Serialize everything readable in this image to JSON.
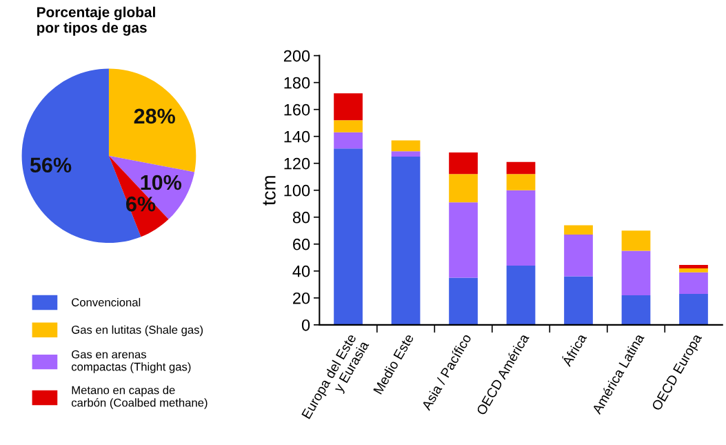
{
  "chart_data": [
    {
      "type": "pie",
      "title": "Porcentaje global\npor tipos de gas",
      "categories": [
        "Convencional",
        "Gas en lutitas (Shale gas)",
        "Gas en arenas\ncompactas (Thight gas)",
        "Metano en capas de\ncarbón (Coalbed methane)"
      ],
      "values": [
        56,
        28,
        10,
        6
      ],
      "colors": [
        "#3f5fe6",
        "#ffbf00",
        "#a566ff",
        "#e00000"
      ],
      "value_labels": [
        "56%",
        "28%",
        "10%",
        "6%"
      ],
      "legend": "bottom"
    },
    {
      "type": "bar",
      "stacked": true,
      "ylabel": "tcm",
      "categories": [
        "Europa del Este\ny Eurasia",
        "Medio Este",
        "Asia / Pacífico",
        "OECD América",
        "África",
        "América Latina",
        "OECD Europa"
      ],
      "ylim": [
        0,
        200
      ],
      "yticks": [
        0,
        20,
        40,
        60,
        80,
        100,
        120,
        140,
        160,
        180,
        200
      ],
      "series": [
        {
          "color": "#3f5fe6",
          "values": [
            131,
            125,
            35,
            44,
            36,
            22,
            23
          ]
        },
        {
          "color": "#a566ff",
          "values": [
            12,
            4,
            56,
            56,
            31,
            33,
            16
          ]
        },
        {
          "color": "#ffbf00",
          "values": [
            9,
            8,
            21,
            12,
            7,
            15,
            3
          ]
        },
        {
          "color": "#e00000",
          "values": [
            20,
            null,
            16,
            9,
            null,
            null,
            2.5
          ]
        }
      ]
    }
  ]
}
